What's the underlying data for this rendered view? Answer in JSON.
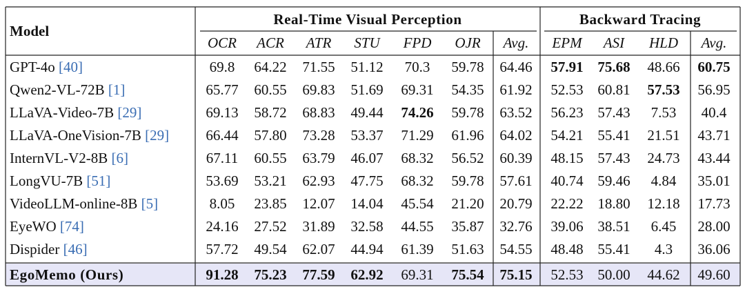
{
  "header": {
    "model": "Model",
    "groups": [
      {
        "title": "Real-Time Visual Perception",
        "columns": [
          "OCR",
          "ACR",
          "ATR",
          "STU",
          "FPD",
          "OJR",
          "Avg."
        ]
      },
      {
        "title": "Backward Tracing",
        "columns": [
          "EPM",
          "ASI",
          "HLD",
          "Avg."
        ]
      }
    ]
  },
  "table": {
    "rows": [
      {
        "model": "GPT-4o",
        "cite": "[40]",
        "values": [
          "69.8",
          "64.22",
          "71.55",
          "51.12",
          "70.3",
          "59.78",
          "64.46",
          {
            "text": "57.91",
            "bold": true
          },
          {
            "text": "75.68",
            "bold": true
          },
          "48.66",
          {
            "text": "60.75",
            "bold": true
          }
        ]
      },
      {
        "model": "Qwen2-VL-72B",
        "cite": "[1]",
        "values": [
          "65.77",
          "60.55",
          "69.83",
          "51.69",
          "69.31",
          "54.35",
          "61.92",
          "52.53",
          "60.81",
          {
            "text": "57.53",
            "bold": true
          },
          "56.95"
        ]
      },
      {
        "model": "LLaVA-Video-7B",
        "cite": "[29]",
        "values": [
          "69.13",
          "58.72",
          "68.83",
          "49.44",
          {
            "text": "74.26",
            "bold": true
          },
          "59.78",
          "63.52",
          "56.23",
          "57.43",
          "7.53",
          "40.4"
        ]
      },
      {
        "model": "LLaVA-OneVision-7B",
        "cite": "[29]",
        "values": [
          "66.44",
          "57.80",
          "73.28",
          "53.37",
          "71.29",
          "61.96",
          "64.02",
          "54.21",
          "55.41",
          "21.51",
          "43.71"
        ]
      },
      {
        "model": "InternVL-V2-8B",
        "cite": "[6]",
        "values": [
          "67.11",
          "60.55",
          "63.79",
          "46.07",
          "68.32",
          "56.52",
          "60.39",
          "48.15",
          "57.43",
          "24.73",
          "43.44"
        ]
      },
      {
        "model": "LongVU-7B",
        "cite": "[51]",
        "values": [
          "53.69",
          "53.21",
          "62.93",
          "47.75",
          "68.32",
          "59.78",
          "57.61",
          "40.74",
          "59.46",
          "4.84",
          "35.01"
        ]
      },
      {
        "model": "VideoLLM-online-8B",
        "cite": "[5]",
        "values": [
          "8.05",
          "23.85",
          "12.07",
          "14.04",
          "45.54",
          "21.20",
          "20.79",
          "22.22",
          "18.80",
          "12.18",
          "17.73"
        ]
      },
      {
        "model": "EyeWO",
        "cite": "[74]",
        "values": [
          "24.16",
          "27.52",
          "31.89",
          "32.58",
          "44.55",
          "35.87",
          "32.76",
          "39.06",
          "38.51",
          "6.45",
          "28.00"
        ]
      },
      {
        "model": "Dispider",
        "cite": "[46]",
        "values": [
          "57.72",
          "49.54",
          "62.07",
          "44.94",
          "61.39",
          "51.63",
          "54.55",
          "48.48",
          "55.41",
          "4.3",
          "36.06"
        ]
      },
      {
        "model": "EgoMemo (Ours)",
        "bold": true,
        "highlight": true,
        "values": [
          {
            "text": "91.28",
            "bold": true
          },
          {
            "text": "75.23",
            "bold": true
          },
          {
            "text": "77.59",
            "bold": true
          },
          {
            "text": "62.92",
            "bold": true
          },
          "69.31",
          {
            "text": "75.54",
            "bold": true
          },
          {
            "text": "75.15",
            "bold": true
          },
          "52.53",
          "50.00",
          "44.62",
          "49.60"
        ]
      }
    ]
  }
}
